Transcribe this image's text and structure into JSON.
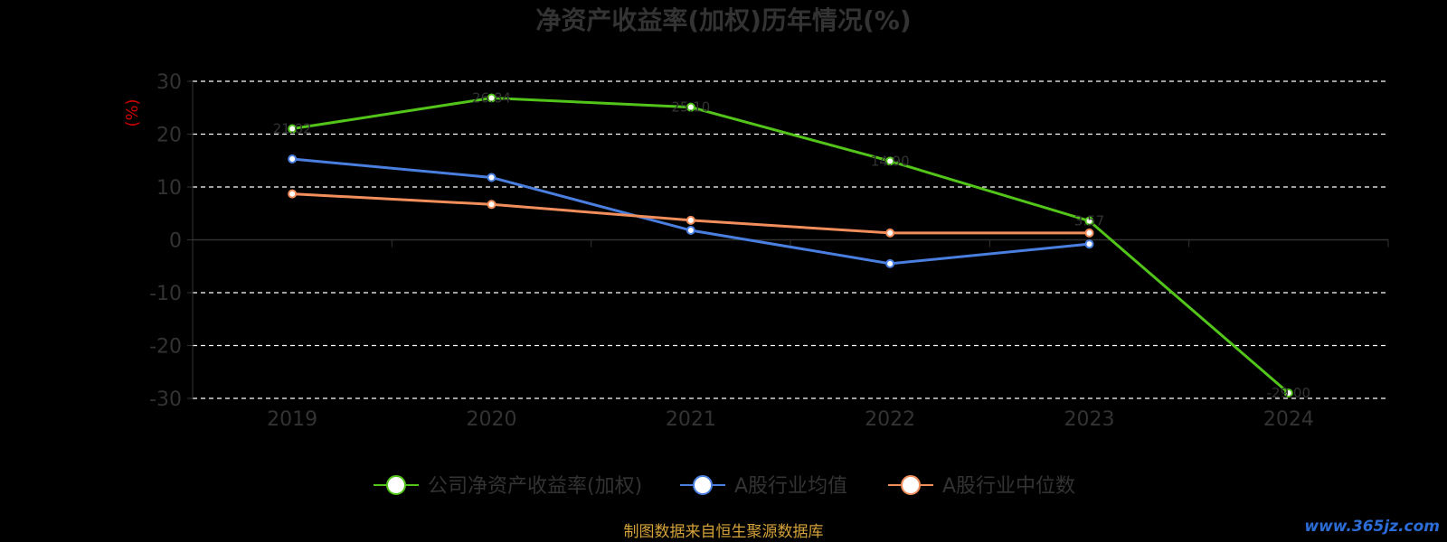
{
  "chart_data": {
    "type": "line",
    "title": "净资产收益率(加权)历年情况(%)",
    "ylabel": "(%)",
    "categories": [
      "2019",
      "2020",
      "2021",
      "2022",
      "2023",
      "2024"
    ],
    "ylim": [
      -30,
      30
    ],
    "yticks": [
      "30",
      "20",
      "10",
      "0",
      "-10",
      "-20",
      "-30"
    ],
    "grid": true,
    "legend_position": "bottom",
    "series": [
      {
        "name": "公司净资产收益率(加权)",
        "color": "#52c41a",
        "values": [
          21.02,
          26.84,
          25.1,
          14.9,
          3.57,
          -29.0
        ],
        "labels": [
          "21.02",
          "26.84",
          "25.10",
          "14.90",
          "3.57",
          "-29.00"
        ]
      },
      {
        "name": "A股行业均值",
        "color": "#4a7fe0",
        "values": [
          15.3,
          11.8,
          1.8,
          -4.5,
          -0.8,
          null
        ]
      },
      {
        "name": "A股行业中位数",
        "color": "#f28e5c",
        "values": [
          8.7,
          6.7,
          3.7,
          1.3,
          1.3,
          null
        ]
      }
    ]
  },
  "footer": {
    "source": "制图数据来自恒生聚源数据库",
    "watermark": "www.365jz.com"
  }
}
